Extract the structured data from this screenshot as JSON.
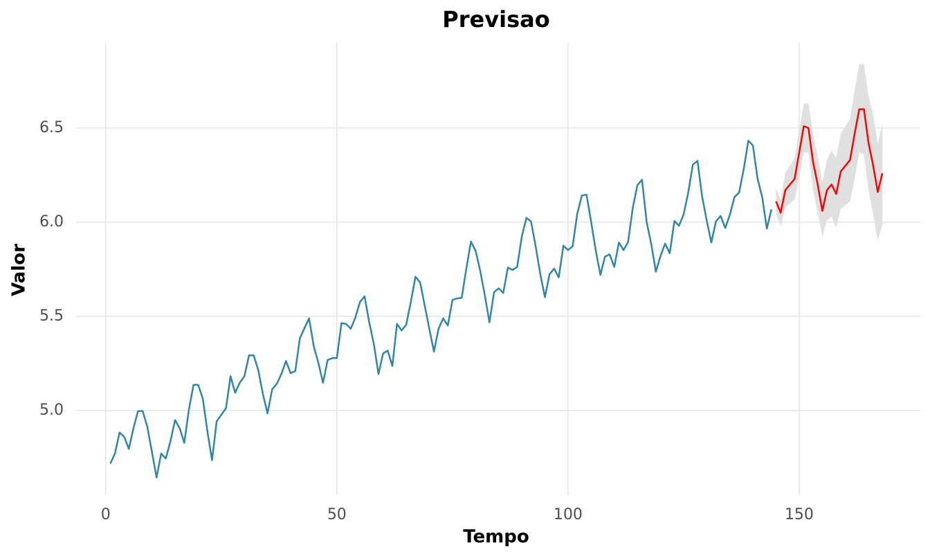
{
  "chart_data": {
    "type": "line",
    "title": "Previsao",
    "x_label": "Tempo",
    "y_label": "Valor",
    "xlim": [
      -6.4,
      176.2
    ],
    "ylim": [
      4.551,
      6.952
    ],
    "xticks": [
      0,
      50,
      100,
      150
    ],
    "yticks": [
      {
        "value": 5.0,
        "label": "5.0"
      },
      5.5,
      {
        "value": 6.0,
        "label": "6.0"
      },
      6.5
    ],
    "grid": true,
    "series": [
      {
        "color": "#2e86ab",
        "x": [
          1,
          2,
          3,
          4,
          5,
          6,
          7,
          8,
          9,
          10,
          11,
          12,
          13,
          14,
          15,
          16,
          17,
          18,
          19,
          20,
          21,
          22,
          23,
          24,
          25,
          26,
          27,
          28,
          29,
          30,
          31,
          32,
          33,
          34,
          35,
          36,
          37,
          38,
          39,
          40,
          41,
          42,
          43,
          44,
          45,
          46,
          47,
          48,
          49,
          50,
          51,
          52,
          53,
          54,
          55,
          56,
          57,
          58,
          59,
          60,
          61,
          62,
          63,
          64,
          65,
          66,
          67,
          68,
          69,
          70,
          71,
          72,
          73,
          74,
          75,
          76,
          77,
          78,
          79,
          80,
          81,
          82,
          83,
          84,
          85,
          86,
          87,
          88,
          89,
          90,
          91,
          92,
          93,
          94,
          95,
          96,
          97,
          98,
          99,
          100,
          101,
          102,
          103,
          104,
          105,
          106,
          107,
          108,
          109,
          110,
          111,
          112,
          113,
          114,
          115,
          116,
          117,
          118,
          119,
          120,
          121,
          122,
          123,
          124,
          125,
          126,
          127,
          128,
          129,
          130,
          131,
          132,
          133,
          134,
          135,
          136,
          137,
          138,
          139,
          140,
          141,
          142,
          143,
          144
        ],
        "values": [
          4.718,
          4.771,
          4.883,
          4.86,
          4.796,
          4.905,
          4.997,
          4.997,
          4.913,
          4.779,
          4.644,
          4.771,
          4.745,
          4.836,
          4.949,
          4.905,
          4.828,
          5.004,
          5.136,
          5.136,
          5.063,
          4.89,
          4.736,
          4.942,
          4.977,
          5.011,
          5.182,
          5.094,
          5.147,
          5.182,
          5.293,
          5.293,
          5.215,
          5.088,
          4.984,
          5.112,
          5.142,
          5.193,
          5.263,
          5.198,
          5.209,
          5.384,
          5.438,
          5.489,
          5.342,
          5.252,
          5.147,
          5.268,
          5.278,
          5.278,
          5.464,
          5.46,
          5.434,
          5.493,
          5.576,
          5.606,
          5.468,
          5.352,
          5.193,
          5.303,
          5.318,
          5.236,
          5.46,
          5.425,
          5.455,
          5.576,
          5.71,
          5.68,
          5.557,
          5.434,
          5.313,
          5.434,
          5.489,
          5.451,
          5.587,
          5.595,
          5.598,
          5.753,
          5.897,
          5.849,
          5.743,
          5.613,
          5.468,
          5.628,
          5.649,
          5.624,
          5.759,
          5.746,
          5.762,
          5.924,
          6.023,
          6.004,
          5.872,
          5.724,
          5.602,
          5.724,
          5.753,
          5.707,
          5.875,
          5.852,
          5.872,
          6.045,
          6.142,
          6.146,
          6.001,
          5.849,
          5.72,
          5.817,
          5.829,
          5.762,
          5.892,
          5.852,
          5.894,
          6.075,
          6.196,
          6.225,
          6.001,
          5.883,
          5.737,
          5.82,
          5.886,
          5.835,
          6.006,
          5.981,
          6.04,
          6.157,
          6.306,
          6.326,
          6.138,
          6.009,
          5.892,
          6.004,
          6.033,
          5.969,
          6.038,
          6.133,
          6.157,
          6.282,
          6.433,
          6.407,
          6.231,
          6.133,
          5.966,
          6.068
        ]
      },
      {
        "color": "#ff0000",
        "band_color": "#e0e0e0",
        "x": [
          145,
          146,
          147,
          148,
          149,
          150,
          151,
          152,
          153,
          154,
          155,
          156,
          157,
          158,
          159,
          160,
          161,
          162,
          163,
          164,
          165,
          166,
          167,
          168
        ],
        "values": [
          6.11,
          6.05,
          6.17,
          6.2,
          6.23,
          6.37,
          6.51,
          6.5,
          6.32,
          6.2,
          6.06,
          6.17,
          6.2,
          6.15,
          6.27,
          6.3,
          6.33,
          6.47,
          6.6,
          6.6,
          6.42,
          6.3,
          6.16,
          6.26
        ],
        "lower": [
          6.04,
          5.98,
          6.08,
          6.1,
          6.12,
          6.24,
          6.37,
          6.37,
          6.17,
          6.05,
          5.92,
          6.01,
          6.03,
          5.97,
          6.07,
          6.09,
          6.11,
          6.23,
          6.37,
          6.36,
          6.17,
          6.04,
          5.9,
          5.99
        ],
        "upper": [
          6.18,
          6.12,
          6.26,
          6.3,
          6.34,
          6.49,
          6.63,
          6.63,
          6.47,
          6.35,
          6.21,
          6.33,
          6.38,
          6.34,
          6.47,
          6.51,
          6.55,
          6.7,
          6.84,
          6.84,
          6.67,
          6.57,
          6.42,
          6.52
        ]
      }
    ]
  }
}
